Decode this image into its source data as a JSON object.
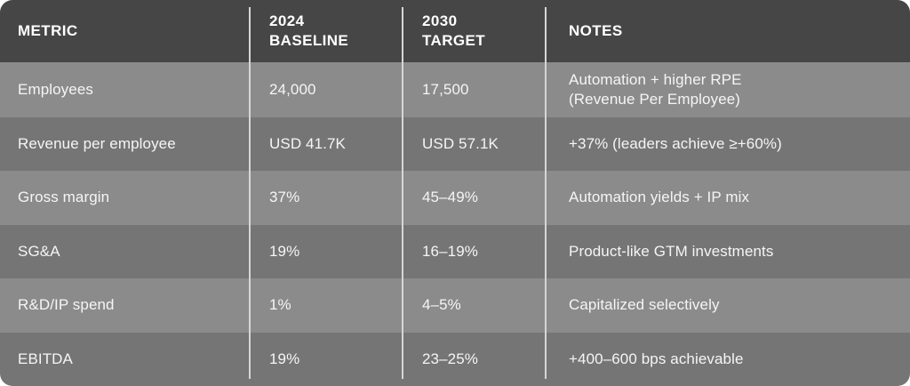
{
  "colors": {
    "header_bg": "#464646",
    "row_light": "#8b8b8b",
    "row_dark": "#757575",
    "divider": "#d6d6d6",
    "header_text": "#ffffff",
    "body_text": "#f5f5f5",
    "page_bg": "#ffffff"
  },
  "table": {
    "columns": [
      {
        "id": "metric",
        "label": "METRIC"
      },
      {
        "id": "baseline",
        "label": "2024\nBASELINE"
      },
      {
        "id": "target",
        "label": "2030\nTARGET"
      },
      {
        "id": "notes",
        "label": "NOTES"
      }
    ],
    "rows": [
      {
        "metric": "Employees",
        "baseline": "24,000",
        "target": "17,500",
        "notes": "Automation + higher RPE\n(Revenue Per Employee)"
      },
      {
        "metric": "Revenue per employee",
        "baseline": "USD 41.7K",
        "target": "USD 57.1K",
        "notes": "+37% (leaders achieve ≥+60%)"
      },
      {
        "metric": "Gross margin",
        "baseline": "37%",
        "target": "45–49%",
        "notes": "Automation yields + IP mix"
      },
      {
        "metric": "SG&A",
        "baseline": "19%",
        "target": "16–19%",
        "notes": "Product-like GTM investments"
      },
      {
        "metric": "R&D/IP spend",
        "baseline": "1%",
        "target": "4–5%",
        "notes": "Capitalized selectively"
      },
      {
        "metric": "EBITDA",
        "baseline": "19%",
        "target": "23–25%",
        "notes": "+400–600 bps achievable"
      }
    ]
  },
  "chart_data": {
    "type": "table",
    "title": "",
    "columns": [
      "METRIC",
      "2024 BASELINE",
      "2030 TARGET",
      "NOTES"
    ],
    "rows": [
      [
        "Employees",
        "24,000",
        "17,500",
        "Automation + higher RPE (Revenue Per Employee)"
      ],
      [
        "Revenue per employee",
        "USD 41.7K",
        "USD 57.1K",
        "+37% (leaders achieve ≥+60%)"
      ],
      [
        "Gross margin",
        "37%",
        "45–49%",
        "Automation yields + IP mix"
      ],
      [
        "SG&A",
        "19%",
        "16–19%",
        "Product-like GTM investments"
      ],
      [
        "R&D/IP spend",
        "1%",
        "4–5%",
        "Capitalized selectively"
      ],
      [
        "EBITDA",
        "19%",
        "23–25%",
        "+400–600 bps achievable"
      ]
    ]
  }
}
